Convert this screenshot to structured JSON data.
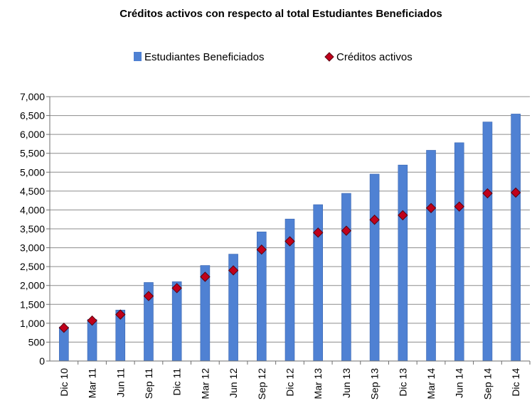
{
  "chart_data": {
    "type": "bar",
    "title": "Créditos activos con respecto al total Estudiantes Beneficiados",
    "xlabel": "",
    "ylabel": "",
    "categories": [
      "Dic 10",
      "Mar 11",
      "Jun 11",
      "Sep 11",
      "Dic 11",
      "Mar 12",
      "Jun 12",
      "Sep 12",
      "Dic 12",
      "Mar 13",
      "Jun 13",
      "Sep 13",
      "Dic 13",
      "Mar 14",
      "Jun 14",
      "Sep 14",
      "Dic 14"
    ],
    "series": [
      {
        "name": "Estudiantes Beneficiados",
        "kind": "bar",
        "color": "#4f81d3",
        "values": [
          900,
          1100,
          1350,
          2080,
          2100,
          2530,
          2830,
          3420,
          3760,
          4140,
          4440,
          4950,
          5190,
          5580,
          5780,
          6330,
          6540
        ]
      },
      {
        "name": "Créditos activos",
        "kind": "marker",
        "color": "#c0001b",
        "values": [
          880,
          1070,
          1230,
          1720,
          1930,
          2230,
          2400,
          2950,
          3170,
          3400,
          3450,
          3740,
          3860,
          4050,
          4090,
          4440,
          4460
        ]
      }
    ],
    "ylim": [
      0,
      7000
    ],
    "yticks": [
      "0",
      "500",
      "1,000",
      "1,500",
      "2,000",
      "2,500",
      "3,000",
      "3,500",
      "4,000",
      "4,500",
      "5,000",
      "5,500",
      "6,000",
      "6,500",
      "7,000"
    ],
    "grid": true,
    "legend_position": "top"
  }
}
